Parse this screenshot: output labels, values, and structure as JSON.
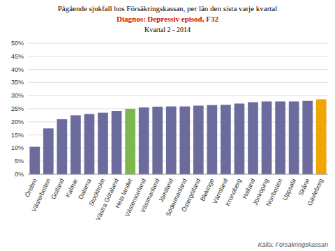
{
  "chart_data": {
    "type": "bar",
    "title": "Pågående sjukfall hos Försäkringskassan, per län den sista varje kvartal",
    "subtitle": [
      "Diagnos: Depressiv episod, F32",
      "Kvartal 2 - 2014"
    ],
    "annotations": [
      "Källa: Försäkringskassan"
    ],
    "categories": [
      "Örebro",
      "Västerbotten",
      "Gotland",
      "Kalmar",
      "Dalarna",
      "Stockholm",
      "Västra Götaland",
      "Hela landet",
      "Västernorrland",
      "Västmanland",
      "Jämtland",
      "Södermanland",
      "Östergötland",
      "Blekinge",
      "Värmland",
      "Kronoberg",
      "Halland",
      "Jönköping",
      "Norrbotten",
      "Uppsala",
      "Skåne",
      "Gävleborg"
    ],
    "values": [
      0.105,
      0.175,
      0.21,
      0.225,
      0.23,
      0.235,
      0.242,
      0.25,
      0.255,
      0.258,
      0.259,
      0.259,
      0.262,
      0.264,
      0.265,
      0.27,
      0.275,
      0.278,
      0.278,
      0.278,
      0.28,
      0.286
    ],
    "colors": [
      "#6b6b9e",
      "#6b6b9e",
      "#6b6b9e",
      "#6b6b9e",
      "#6b6b9e",
      "#6b6b9e",
      "#6b6b9e",
      "#7db84e",
      "#6b6b9e",
      "#6b6b9e",
      "#6b6b9e",
      "#6b6b9e",
      "#6b6b9e",
      "#6b6b9e",
      "#6b6b9e",
      "#6b6b9e",
      "#6b6b9e",
      "#6b6b9e",
      "#6b6b9e",
      "#6b6b9e",
      "#6b6b9e",
      "#f0a500"
    ],
    "ylim": [
      0,
      0.5
    ],
    "yticks": [
      {
        "value": 0.0,
        "label": "0%"
      },
      {
        "value": 0.05,
        "label": "5%"
      },
      {
        "value": 0.1,
        "label": "10%"
      },
      {
        "value": 0.15,
        "label": "15%"
      },
      {
        "value": 0.2,
        "label": "20%"
      },
      {
        "value": 0.25,
        "label": "25%"
      },
      {
        "value": 0.3,
        "label": "30%"
      },
      {
        "value": 0.35,
        "label": "35%"
      },
      {
        "value": 0.4,
        "label": "40%"
      },
      {
        "value": 0.45,
        "label": "45%"
      },
      {
        "value": 0.5,
        "label": "50%"
      }
    ],
    "grid": true
  }
}
